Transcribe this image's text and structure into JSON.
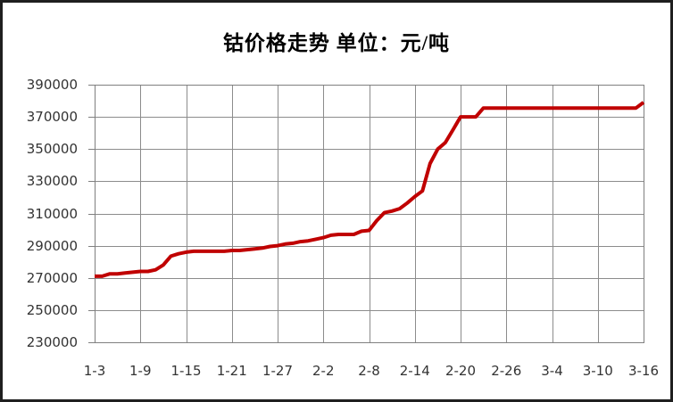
{
  "title": "钴价格走势 单位：元/吨",
  "chart_data": {
    "type": "line",
    "title": "钴价格走势 单位：元/吨",
    "unit": "元/吨",
    "legend": "none",
    "grid": true,
    "line_color": "#C00000",
    "gridline_color": "#8C8C8C",
    "label_color": "#333333",
    "background": "#FFFFFF",
    "ylim": [
      230000,
      390000
    ],
    "y_ticks": [
      390000,
      370000,
      350000,
      330000,
      310000,
      290000,
      270000,
      250000,
      230000
    ],
    "x_tick_labels": [
      "1-3",
      "1-9",
      "1-15",
      "1-21",
      "1-27",
      "2-2",
      "2-8",
      "2-14",
      "2-20",
      "2-26",
      "3-4",
      "3-10",
      "3-16"
    ],
    "x_tick_every": 6,
    "x": [
      "1-3",
      "1-4",
      "1-5",
      "1-6",
      "1-7",
      "1-8",
      "1-9",
      "1-10",
      "1-11",
      "1-12",
      "1-13",
      "1-14",
      "1-15",
      "1-16",
      "1-17",
      "1-18",
      "1-19",
      "1-20",
      "1-21",
      "1-22",
      "1-23",
      "1-24",
      "1-25",
      "1-26",
      "1-27",
      "1-28",
      "1-29",
      "1-30",
      "1-31",
      "2-1",
      "2-2",
      "2-3",
      "2-4",
      "2-5",
      "2-6",
      "2-7",
      "2-8",
      "2-9",
      "2-10",
      "2-11",
      "2-12",
      "2-13",
      "2-14",
      "2-15",
      "2-16",
      "2-17",
      "2-18",
      "2-19",
      "2-20",
      "2-21",
      "2-22",
      "2-23",
      "2-24",
      "2-25",
      "2-26",
      "2-27",
      "2-28",
      "3-1",
      "3-2",
      "3-3",
      "3-4",
      "3-5",
      "3-6",
      "3-7",
      "3-8",
      "3-9",
      "3-10",
      "3-11",
      "3-12",
      "3-13",
      "3-14",
      "3-15",
      "3-16"
    ],
    "values": [
      271000,
      271000,
      272500,
      272500,
      273000,
      273500,
      274000,
      274000,
      275000,
      278000,
      283500,
      285000,
      286000,
      286500,
      286500,
      286500,
      286500,
      286500,
      287000,
      287000,
      287500,
      288000,
      288500,
      289500,
      290000,
      291000,
      291500,
      292500,
      293000,
      294000,
      295000,
      296500,
      297000,
      297000,
      297000,
      299000,
      299500,
      305500,
      310500,
      311500,
      313000,
      316500,
      320500,
      324000,
      341000,
      350000,
      354000,
      362000,
      370000,
      370000,
      370000,
      375500,
      375500,
      375500,
      375500,
      375500,
      375500,
      375500,
      375500,
      375500,
      375500,
      375500,
      375500,
      375500,
      375500,
      375500,
      375500,
      375500,
      375500,
      375500,
      375500,
      375500,
      379000
    ]
  }
}
